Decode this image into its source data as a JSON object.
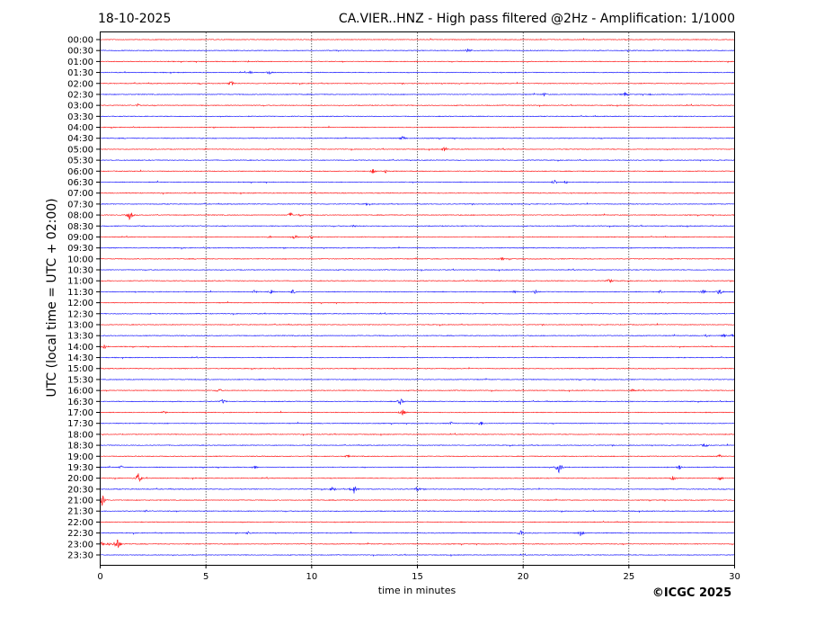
{
  "header": {
    "date": "18-10-2025",
    "title": "CA.VIER..HNZ - High pass filtered @2Hz - Amplification: 1/1000"
  },
  "footer": {
    "copyright": "©ICGC 2025"
  },
  "colors": {
    "trace_a": "#ff0000",
    "trace_b": "#0000ff",
    "grid": "#000000"
  },
  "chart_data": {
    "type": "line",
    "subtype": "helicorder",
    "title": "CA.VIER..HNZ - High pass filtered @2Hz - Amplification: 1/1000",
    "xlabel": "time in minutes",
    "ylabel": "UTC (local time = UTC + 02:00)",
    "xlim": [
      0,
      30
    ],
    "xticks": [
      0,
      5,
      10,
      15,
      20,
      25,
      30
    ],
    "grid": "vertical dotted at x ticks",
    "rows": [
      "00:00",
      "00:30",
      "01:00",
      "01:30",
      "02:00",
      "02:30",
      "03:00",
      "03:30",
      "04:00",
      "04:30",
      "05:00",
      "05:30",
      "06:00",
      "06:30",
      "07:00",
      "07:30",
      "08:00",
      "08:30",
      "09:00",
      "09:30",
      "10:00",
      "10:30",
      "11:00",
      "11:30",
      "12:00",
      "12:30",
      "13:00",
      "13:30",
      "14:00",
      "14:30",
      "15:00",
      "15:30",
      "16:00",
      "16:30",
      "17:00",
      "17:30",
      "18:00",
      "18:30",
      "19:00",
      "19:30",
      "20:00",
      "20:30",
      "21:00",
      "21:30",
      "22:00",
      "22:30",
      "23:00",
      "23:30"
    ],
    "row_colors": [
      "red",
      "blue"
    ],
    "events": [
      {
        "row": "00:30",
        "minute": 17.4,
        "amp": 3
      },
      {
        "row": "01:00",
        "minute": 7.0,
        "amp": 1
      },
      {
        "row": "01:30",
        "minute": 7.1,
        "amp": 1.5
      },
      {
        "row": "01:30",
        "minute": 8.0,
        "amp": 2
      },
      {
        "row": "02:00",
        "minute": 4.7,
        "amp": 1
      },
      {
        "row": "02:00",
        "minute": 6.2,
        "amp": 3
      },
      {
        "row": "02:30",
        "minute": 21.0,
        "amp": 2
      },
      {
        "row": "02:30",
        "minute": 24.8,
        "amp": 3
      },
      {
        "row": "02:30",
        "minute": 26.0,
        "amp": 1
      },
      {
        "row": "03:00",
        "minute": 1.8,
        "amp": 2
      },
      {
        "row": "04:00",
        "minute": 21.6,
        "amp": 1
      },
      {
        "row": "04:30",
        "minute": 14.3,
        "amp": 3
      },
      {
        "row": "05:00",
        "minute": 5.0,
        "amp": 1
      },
      {
        "row": "05:00",
        "minute": 16.3,
        "amp": 3
      },
      {
        "row": "06:00",
        "minute": 12.9,
        "amp": 3
      },
      {
        "row": "06:00",
        "minute": 13.5,
        "amp": 2
      },
      {
        "row": "06:00",
        "minute": 19.9,
        "amp": 1
      },
      {
        "row": "06:30",
        "minute": 21.5,
        "amp": 3
      },
      {
        "row": "06:30",
        "minute": 22.0,
        "amp": 2
      },
      {
        "row": "07:30",
        "minute": 12.6,
        "amp": 1.5
      },
      {
        "row": "08:00",
        "minute": 1.4,
        "amp": 6
      },
      {
        "row": "08:00",
        "minute": 2.7,
        "amp": 1
      },
      {
        "row": "08:00",
        "minute": 9.0,
        "amp": 3
      },
      {
        "row": "08:00",
        "minute": 9.5,
        "amp": 2
      },
      {
        "row": "08:30",
        "minute": 12.0,
        "amp": 1.5
      },
      {
        "row": "09:00",
        "minute": 8.0,
        "amp": 1.5
      },
      {
        "row": "09:00",
        "minute": 9.2,
        "amp": 3
      },
      {
        "row": "09:00",
        "minute": 10.0,
        "amp": 3
      },
      {
        "row": "10:00",
        "minute": 19.0,
        "amp": 2
      },
      {
        "row": "10:00",
        "minute": 27.3,
        "amp": 1
      },
      {
        "row": "11:00",
        "minute": 24.1,
        "amp": 3
      },
      {
        "row": "11:30",
        "minute": 7.3,
        "amp": 2
      },
      {
        "row": "11:30",
        "minute": 8.1,
        "amp": 3
      },
      {
        "row": "11:30",
        "minute": 9.1,
        "amp": 3
      },
      {
        "row": "11:30",
        "minute": 19.6,
        "amp": 2
      },
      {
        "row": "11:30",
        "minute": 20.6,
        "amp": 3
      },
      {
        "row": "11:30",
        "minute": 26.5,
        "amp": 2
      },
      {
        "row": "11:30",
        "minute": 28.5,
        "amp": 3
      },
      {
        "row": "11:30",
        "minute": 29.3,
        "amp": 4
      },
      {
        "row": "13:30",
        "minute": 28.7,
        "amp": 2
      },
      {
        "row": "13:30",
        "minute": 29.5,
        "amp": 2
      },
      {
        "row": "13:30",
        "minute": 29.9,
        "amp": 2
      },
      {
        "row": "14:00",
        "minute": 0.2,
        "amp": 3
      },
      {
        "row": "16:00",
        "minute": 5.6,
        "amp": 3
      },
      {
        "row": "16:00",
        "minute": 25.2,
        "amp": 2
      },
      {
        "row": "16:30",
        "minute": 5.8,
        "amp": 3
      },
      {
        "row": "16:30",
        "minute": 14.2,
        "amp": 4
      },
      {
        "row": "17:00",
        "minute": 3.0,
        "amp": 1.5
      },
      {
        "row": "17:00",
        "minute": 14.3,
        "amp": 4
      },
      {
        "row": "17:30",
        "minute": 16.6,
        "amp": 2
      },
      {
        "row": "17:30",
        "minute": 18.0,
        "amp": 3
      },
      {
        "row": "18:30",
        "minute": 28.6,
        "amp": 3
      },
      {
        "row": "19:00",
        "minute": 11.7,
        "amp": 2
      },
      {
        "row": "19:00",
        "minute": 29.3,
        "amp": 2
      },
      {
        "row": "19:30",
        "minute": 1.0,
        "amp": 2
      },
      {
        "row": "19:30",
        "minute": 7.3,
        "amp": 2
      },
      {
        "row": "19:30",
        "minute": 21.7,
        "amp": 7
      },
      {
        "row": "19:30",
        "minute": 27.4,
        "amp": 3
      },
      {
        "row": "20:00",
        "minute": 1.8,
        "amp": 6
      },
      {
        "row": "20:00",
        "minute": 27.1,
        "amp": 3
      },
      {
        "row": "20:00",
        "minute": 29.3,
        "amp": 3
      },
      {
        "row": "20:30",
        "minute": 11.0,
        "amp": 3
      },
      {
        "row": "20:30",
        "minute": 12.0,
        "amp": 5
      },
      {
        "row": "20:30",
        "minute": 15.0,
        "amp": 3
      },
      {
        "row": "21:00",
        "minute": 0.1,
        "amp": 8
      },
      {
        "row": "21:30",
        "minute": 2.2,
        "amp": 1.5
      },
      {
        "row": "22:30",
        "minute": 7.0,
        "amp": 2
      },
      {
        "row": "22:30",
        "minute": 19.9,
        "amp": 3
      },
      {
        "row": "22:30",
        "minute": 22.7,
        "amp": 4
      },
      {
        "row": "23:00",
        "minute": 0.1,
        "amp": 3
      },
      {
        "row": "23:00",
        "minute": 0.4,
        "amp": 2
      },
      {
        "row": "23:00",
        "minute": 0.8,
        "amp": 8
      }
    ]
  }
}
